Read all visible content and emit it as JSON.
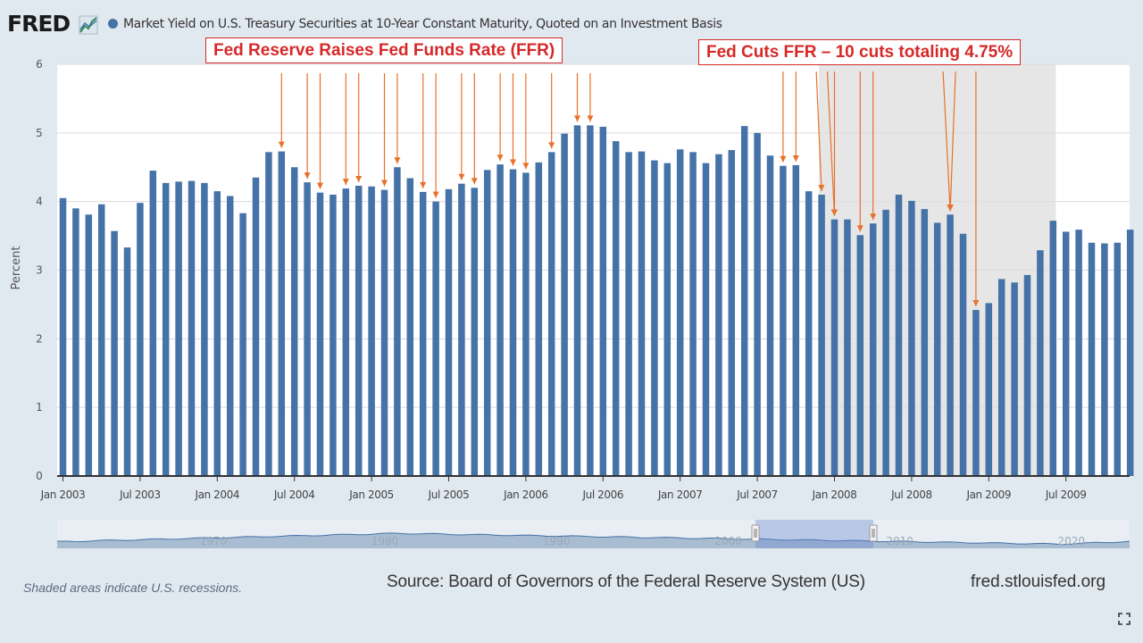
{
  "header": {
    "logo_text": "FRED",
    "series_title": "Market Yield on U.S. Treasury Securities at 10-Year Constant Maturity, Quoted on an Investment Basis"
  },
  "annotations": {
    "raises_label": "Fed Reserve Raises Fed Funds Rate (FFR)",
    "cuts_label": "Fed Cuts FFR – 10 cuts totaling 4.75%"
  },
  "navigator": {
    "labels": [
      "1970",
      "1980",
      "1990",
      "2000",
      "2010",
      "2020"
    ]
  },
  "footer": {
    "note": "Shaded areas indicate U.S. recessions.",
    "source": "Source: Board of Governors of the Federal Reserve System (US)",
    "url": "fred.stlouisfed.org"
  },
  "icons": {
    "logo_graph": "line-graph-icon",
    "fullscreen": "fullscreen-icon"
  },
  "colors": {
    "bar": "#4572a7",
    "arrow": "#e8702a",
    "annotation": "#d62828",
    "recession": "#e6e6e6"
  },
  "chart_data": {
    "type": "bar",
    "ylabel": "Percent",
    "ylim": [
      0,
      6
    ],
    "yticks": [
      0,
      1,
      2,
      3,
      4,
      5,
      6
    ],
    "x_tick_labels": [
      "Jan 2003",
      "Jul 2003",
      "Jan 2004",
      "Jul 2004",
      "Jan 2005",
      "Jul 2005",
      "Jan 2006",
      "Jul 2006",
      "Jan 2007",
      "Jul 2007",
      "Jan 2008",
      "Jul 2008",
      "Jan 2009",
      "Jul 2009"
    ],
    "start_month": "2003-01",
    "values": [
      4.05,
      3.9,
      3.81,
      3.96,
      3.57,
      3.33,
      3.98,
      4.45,
      4.27,
      4.29,
      4.3,
      4.27,
      4.15,
      4.08,
      3.83,
      4.35,
      4.72,
      4.73,
      4.5,
      4.28,
      4.13,
      4.1,
      4.19,
      4.23,
      4.22,
      4.17,
      4.5,
      4.34,
      4.14,
      4.0,
      4.18,
      4.26,
      4.2,
      4.46,
      4.54,
      4.47,
      4.42,
      4.57,
      4.72,
      4.99,
      5.11,
      5.11,
      5.09,
      4.88,
      4.72,
      4.73,
      4.6,
      4.56,
      4.76,
      4.72,
      4.56,
      4.69,
      4.75,
      5.1,
      5.0,
      4.67,
      4.52,
      4.53,
      4.15,
      4.1,
      3.74,
      3.74,
      3.51,
      3.68,
      3.88,
      4.1,
      4.01,
      3.89,
      3.69,
      3.81,
      3.53,
      2.42,
      2.52,
      2.87,
      2.82,
      2.93,
      3.29,
      3.72,
      3.56,
      3.59,
      3.4,
      3.39,
      3.4,
      3.59
    ],
    "recession_shading": {
      "start": "2007-12",
      "end": "2009-06"
    },
    "grid": true,
    "raise_arrow_months": [
      "2004-06",
      "2004-08",
      "2004-09",
      "2004-11",
      "2004-12",
      "2005-02",
      "2005-03",
      "2005-05",
      "2005-06",
      "2005-08",
      "2005-09",
      "2005-11",
      "2005-12",
      "2006-01",
      "2006-03",
      "2006-05",
      "2006-06"
    ],
    "cut_arrow_months": [
      "2007-09",
      "2007-10",
      "2007-12",
      "2008-01",
      "2008-01",
      "2008-03",
      "2008-04",
      "2008-10",
      "2008-10",
      "2008-12"
    ]
  }
}
